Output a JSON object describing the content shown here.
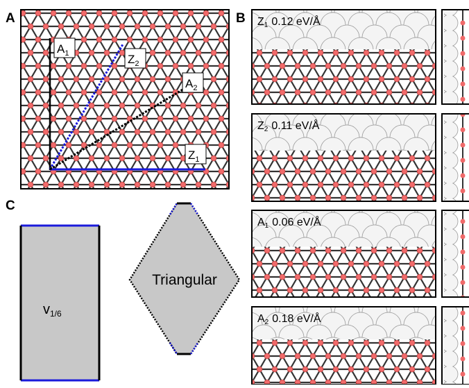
{
  "panel_labels": [
    "A",
    "B",
    "C"
  ],
  "panel_a": {
    "directions": [
      {
        "letter": "A",
        "sub": "1"
      },
      {
        "letter": "Z",
        "sub": "2"
      },
      {
        "letter": "A",
        "sub": "2"
      },
      {
        "letter": "Z",
        "sub": "1"
      }
    ]
  },
  "panel_b": {
    "edges": [
      {
        "letter": "Z",
        "sub": "1",
        "energy": "0.12 eV/Å"
      },
      {
        "letter": "Z",
        "sub": "2",
        "energy": "0.11 eV/Å"
      },
      {
        "letter": "A",
        "sub": "1",
        "energy": "0.06 eV/Å"
      },
      {
        "letter": "A",
        "sub": "2",
        "energy": "0.18 eV/Å"
      }
    ]
  },
  "panel_c": {
    "shapes": [
      {
        "letter": "v",
        "sub": "1/6"
      },
      {
        "label": "Triangular"
      }
    ]
  }
}
